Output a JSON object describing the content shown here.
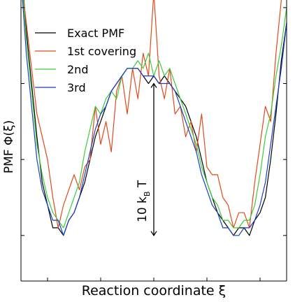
{
  "chart_data": {
    "type": "line",
    "xlabel": "Reaction coordinate ξ",
    "ylabel": "PMF Φ(ξ)",
    "xlim": [
      0,
      100
    ],
    "ylim": [
      -6,
      31
    ],
    "x_tick_labels": [],
    "y_tick_labels": [],
    "legend_position": "top-left",
    "grid": false,
    "annotation": {
      "text": "10 k",
      "subscript": "B",
      "suffix": " T",
      "arrow_from_y": 0,
      "arrow_to_y": 20
    },
    "series": [
      {
        "name": "Exact PMF",
        "color": "#000000",
        "x": [
          0,
          2,
          4,
          6,
          8,
          10,
          12,
          14,
          16,
          18,
          20,
          22,
          24,
          26,
          28,
          30,
          32,
          34,
          36,
          38,
          40,
          42,
          44,
          46,
          48,
          50,
          52,
          54,
          56,
          58,
          60,
          62,
          64,
          66,
          68,
          70,
          72,
          74,
          76,
          78,
          80,
          82,
          84,
          86,
          88,
          90,
          92,
          94,
          96,
          98,
          100
        ],
        "y": [
          36,
          27,
          20,
          13,
          7,
          4,
          1,
          1,
          0,
          2,
          3,
          5,
          7,
          10,
          13,
          15,
          17,
          19,
          20,
          21,
          22,
          22,
          22,
          21,
          20,
          21,
          20,
          21,
          20,
          19,
          18,
          17,
          15,
          13,
          10,
          7,
          5,
          3,
          2,
          1,
          0,
          1,
          1,
          0,
          2,
          3,
          5,
          10,
          16,
          23,
          28
        ]
      },
      {
        "name": "1st covering",
        "color": "#e04a1a",
        "x": [
          0,
          2,
          4,
          6,
          8,
          10,
          12,
          14,
          16,
          18,
          20,
          22,
          24,
          26,
          28,
          30,
          32,
          34,
          36,
          38,
          40,
          42,
          44,
          46,
          48,
          50,
          52,
          54,
          56,
          58,
          60,
          62,
          64,
          66,
          68,
          70,
          72,
          74,
          76,
          78,
          80,
          82,
          84,
          86,
          88,
          90,
          92,
          94,
          96,
          98,
          100
        ],
        "y": [
          34,
          28,
          22,
          16,
          13,
          10,
          5,
          1,
          4,
          6,
          8,
          6,
          9,
          10,
          17,
          12,
          15,
          11,
          19,
          21,
          16,
          22,
          18,
          24,
          21,
          32,
          21,
          18,
          22,
          16,
          17,
          13,
          15,
          11,
          16,
          9,
          8,
          8,
          5,
          4,
          1,
          3,
          3,
          1,
          7,
          12,
          17,
          15,
          24,
          31,
          36
        ]
      },
      {
        "name": "2nd",
        "color": "#3ccc3c",
        "x": [
          0,
          2,
          4,
          6,
          8,
          10,
          12,
          14,
          16,
          18,
          20,
          22,
          24,
          26,
          28,
          30,
          32,
          34,
          36,
          38,
          40,
          42,
          44,
          46,
          48,
          50,
          52,
          54,
          56,
          58,
          60,
          62,
          64,
          66,
          68,
          70,
          72,
          74,
          76,
          78,
          80,
          82,
          84,
          86,
          88,
          90,
          92,
          94,
          96,
          98,
          100
        ],
        "y": [
          35,
          26,
          19,
          12,
          8,
          5,
          3,
          2,
          1,
          3,
          5,
          7,
          11,
          14,
          17,
          16,
          18,
          19,
          18,
          21,
          22,
          22,
          23,
          22,
          24,
          21,
          23,
          21,
          22,
          20,
          18,
          16,
          14,
          12,
          9,
          7,
          5,
          4,
          2,
          2,
          1,
          1,
          2,
          2,
          4,
          8,
          13,
          16,
          21,
          25,
          30
        ]
      },
      {
        "name": "3rd",
        "color": "#1a3fbf",
        "x": [
          0,
          2,
          4,
          6,
          8,
          10,
          12,
          14,
          16,
          18,
          20,
          22,
          24,
          26,
          28,
          30,
          32,
          34,
          36,
          38,
          40,
          42,
          44,
          46,
          48,
          50,
          52,
          54,
          56,
          58,
          60,
          62,
          64,
          66,
          68,
          70,
          72,
          74,
          76,
          78,
          80,
          82,
          84,
          86,
          88,
          90,
          92,
          94,
          96,
          98,
          100
        ],
        "y": [
          34,
          24,
          17,
          10,
          6,
          4,
          2,
          2,
          0,
          2,
          3,
          5,
          8,
          11,
          14,
          16,
          17,
          19,
          20,
          21,
          22,
          22,
          22,
          21,
          21,
          21,
          20,
          20,
          20,
          19,
          17,
          15,
          13,
          11,
          8,
          6,
          4,
          3,
          1,
          1,
          0,
          0,
          1,
          1,
          2,
          4,
          7,
          12,
          17,
          22,
          28
        ]
      }
    ]
  }
}
